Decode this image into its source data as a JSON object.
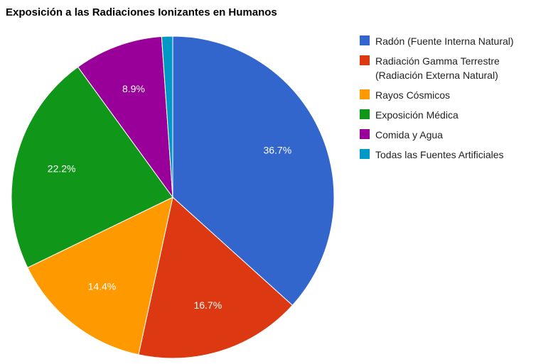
{
  "chart_data": {
    "type": "pie",
    "title": "Exposición a las Radiaciones Ionizantes en Humanos",
    "categories": [
      "Radón (Fuente Interna Natural)",
      "Radiación Gamma Terrestre\n(Radiación Externa Natural)",
      "Rayos Cósmicos",
      "Exposición Médica",
      "Comida y Agua",
      "Todas las Fuentes Artificiales"
    ],
    "values": [
      36.7,
      16.7,
      14.4,
      22.2,
      8.9,
      1.1
    ],
    "data_labels": [
      "36.7%",
      "16.7%",
      "14.4%",
      "22.2%",
      "8.9%",
      ""
    ],
    "colors": [
      "#3366cc",
      "#dc3912",
      "#ff9900",
      "#109618",
      "#990099",
      "#0099c6"
    ],
    "legend_position": "right"
  }
}
